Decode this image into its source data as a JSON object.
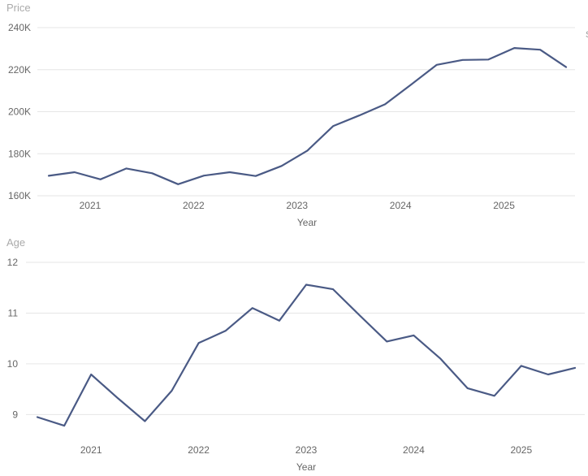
{
  "colors": {
    "series": "#4a5a85",
    "grid": "#e6e6e6",
    "text": "#666666",
    "title": "#aaaaaa"
  },
  "chart_data": [
    {
      "type": "line",
      "ylabel": "Price",
      "xlabel": "Year",
      "ylim": [
        160000,
        240000
      ],
      "xlim": [
        2020.5,
        2025.75
      ],
      "yticks": [
        160000,
        180000,
        200000,
        220000,
        240000
      ],
      "ytick_labels": [
        "160K",
        "180K",
        "200K",
        "220K",
        "240K"
      ],
      "xticks": [
        2021,
        2022,
        2023,
        2024,
        2025
      ],
      "xtick_labels": [
        "2021",
        "2022",
        "2023",
        "2024",
        "2025"
      ],
      "grid": true,
      "series": [
        {
          "x": [
            2020.6,
            2020.85,
            2021.1,
            2021.35,
            2021.6,
            2021.85,
            2022.1,
            2022.35,
            2022.6,
            2022.85,
            2023.1,
            2023.35,
            2023.6,
            2023.85,
            2024.1,
            2024.35,
            2024.6,
            2024.85,
            2025.1,
            2025.35,
            2025.6
          ],
          "values": [
            169500,
            171200,
            167800,
            173000,
            170700,
            165500,
            169600,
            171200,
            169400,
            174200,
            181500,
            193200,
            198200,
            203500,
            212800,
            222300,
            224600,
            224800,
            230300,
            229500,
            221200
          ]
        }
      ],
      "edge_mark": "S"
    },
    {
      "type": "line",
      "ylabel": "Age",
      "xlabel": "Year",
      "ylim": [
        8.75,
        12
      ],
      "xlim": [
        2020.5,
        2025.75
      ],
      "yticks": [
        9,
        10,
        11,
        12
      ],
      "ytick_labels": [
        "9",
        "10",
        "11",
        "12"
      ],
      "xticks": [
        2021,
        2022,
        2023,
        2024,
        2025
      ],
      "xtick_labels": [
        "2021",
        "2022",
        "2023",
        "2024",
        "2025"
      ],
      "grid": true,
      "series": [
        {
          "x": [
            2020.5,
            2020.75,
            2021.0,
            2021.25,
            2021.5,
            2021.75,
            2022.0,
            2022.25,
            2022.5,
            2022.75,
            2023.0,
            2023.25,
            2023.5,
            2023.75,
            2024.0,
            2024.25,
            2024.5,
            2024.75,
            2025.0,
            2025.25,
            2025.5
          ],
          "values": [
            8.95,
            8.78,
            9.79,
            9.32,
            8.87,
            9.47,
            10.41,
            10.65,
            11.1,
            10.85,
            11.56,
            11.47,
            10.95,
            10.44,
            10.56,
            10.1,
            9.52,
            9.37,
            9.96,
            9.79,
            9.92
          ]
        }
      ]
    }
  ]
}
